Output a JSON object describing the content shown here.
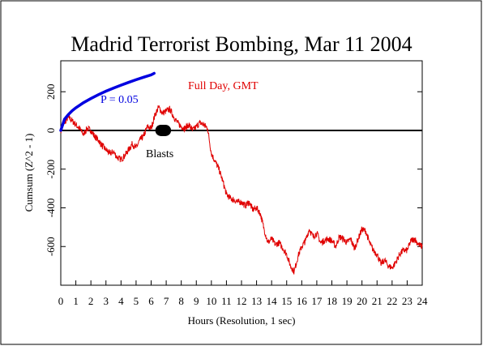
{
  "chart_data": {
    "type": "line",
    "title": "Madrid Terrorist Bombing, Mar 11 2004",
    "xlabel": "Hours (Resolution, 1 sec)",
    "ylabel": "Cumsum (Z^2 - 1)",
    "xlim": [
      0,
      24
    ],
    "ylim": [
      -800,
      360
    ],
    "x_ticks": [
      0,
      1,
      2,
      3,
      4,
      5,
      6,
      7,
      8,
      9,
      10,
      11,
      12,
      13,
      14,
      15,
      16,
      17,
      18,
      19,
      20,
      21,
      22,
      23,
      24
    ],
    "y_ticks": [
      200,
      0,
      -200,
      -400,
      -600
    ],
    "grid": false,
    "colors": {
      "data": "#e00000",
      "probability": "#0000e0",
      "baseline": "#000000",
      "annotation": "#000000"
    },
    "annotations": {
      "subtitle": "Full Day, GMT",
      "probability_label": "P = 0.05",
      "event_label": "Blasts",
      "event_hours": [
        6.6,
        7.0
      ]
    },
    "series": [
      {
        "style": "red-trace",
        "x": [
          0.0,
          0.25,
          0.5,
          0.75,
          1.0,
          1.25,
          1.5,
          1.75,
          2.0,
          2.25,
          2.5,
          2.75,
          3.0,
          3.25,
          3.5,
          3.75,
          4.0,
          4.25,
          4.5,
          4.75,
          5.0,
          5.25,
          5.5,
          5.75,
          6.0,
          6.25,
          6.5,
          6.75,
          7.0,
          7.25,
          7.5,
          7.75,
          8.0,
          8.25,
          8.5,
          8.75,
          9.0,
          9.25,
          9.5,
          9.75,
          10.0,
          10.25,
          10.5,
          10.75,
          11.0,
          11.25,
          11.5,
          11.75,
          12.0,
          12.25,
          12.5,
          12.75,
          13.0,
          13.25,
          13.5,
          13.75,
          14.0,
          14.25,
          14.5,
          14.75,
          15.0,
          15.25,
          15.5,
          15.75,
          16.0,
          16.25,
          16.5,
          16.75,
          17.0,
          17.25,
          17.5,
          17.75,
          18.0,
          18.25,
          18.5,
          18.75,
          19.0,
          19.25,
          19.5,
          19.75,
          20.0,
          20.25,
          20.5,
          20.75,
          21.0,
          21.25,
          21.5,
          21.75,
          22.0,
          22.25,
          22.5,
          22.75,
          23.0,
          23.25,
          23.5,
          23.75,
          24.0
        ],
        "y": [
          0,
          40,
          70,
          50,
          30,
          10,
          -20,
          10,
          0,
          -30,
          -50,
          -80,
          -100,
          -120,
          -110,
          -140,
          -150,
          -130,
          -100,
          -70,
          -90,
          -50,
          -30,
          20,
          10,
          80,
          120,
          90,
          100,
          110,
          70,
          40,
          20,
          10,
          30,
          0,
          20,
          40,
          30,
          10,
          -120,
          -160,
          -200,
          -260,
          -330,
          -350,
          -360,
          -370,
          -370,
          -390,
          -370,
          -410,
          -400,
          -430,
          -510,
          -580,
          -560,
          -590,
          -580,
          -610,
          -640,
          -700,
          -730,
          -650,
          -600,
          -570,
          -510,
          -550,
          -530,
          -580,
          -570,
          -560,
          -570,
          -600,
          -550,
          -560,
          -580,
          -560,
          -610,
          -560,
          -510,
          -520,
          -580,
          -620,
          -640,
          -690,
          -670,
          -700,
          -710,
          -680,
          -640,
          -620,
          -620,
          -570,
          -560,
          -590,
          -600
        ]
      },
      {
        "style": "blue-envelope",
        "x": [
          0.0,
          0.25,
          0.5,
          0.75,
          1.0,
          1.5,
          2.0,
          2.5,
          3.0,
          3.5,
          4.0,
          4.5,
          5.0,
          5.5,
          6.0,
          6.2
        ],
        "y": [
          0,
          58,
          82,
          101,
          117,
          143,
          165,
          185,
          203,
          219,
          234,
          248,
          262,
          275,
          287,
          295
        ]
      }
    ]
  }
}
